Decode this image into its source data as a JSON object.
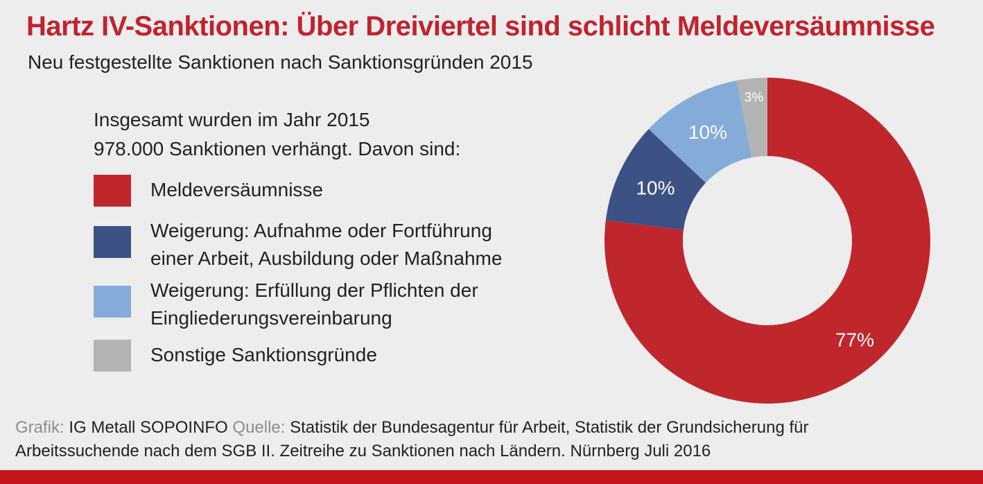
{
  "header": {
    "title": "Hartz IV-Sanktionen: Über Dreiviertel sind schlicht Meldeversäumnisse",
    "subtitle": "Neu festgestellte Sanktionen nach Sanktionsgründen 2015"
  },
  "intro": {
    "line1": "Insgesamt wurden im Jahr 2015",
    "line2": "978.000 Sanktionen verhängt. Davon sind:"
  },
  "legend": [
    {
      "lines": [
        "Meldeversäumnisse"
      ],
      "color": "#c0272d"
    },
    {
      "lines": [
        "Weigerung: Aufnahme oder Fortführung",
        "einer Arbeit, Ausbildung oder Maßnahme"
      ],
      "color": "#3e5185"
    },
    {
      "lines": [
        "Weigerung: Erfüllung der Pflichten der",
        "Eingliederungsvereinbarung"
      ],
      "color": "#85acd9"
    },
    {
      "lines": [
        "Sonstige Sanktionsgründe"
      ],
      "color": "#b3b3b3"
    }
  ],
  "chart_data": {
    "type": "pie",
    "donut": true,
    "categories": [
      "Meldeversäumnisse",
      "Weigerung: Aufnahme oder Fortführung einer Arbeit, Ausbildung oder Maßnahme",
      "Weigerung: Erfüllung der Pflichten der Eingliederungsvereinbarung",
      "Sonstige Sanktionsgründe"
    ],
    "values": [
      77,
      10,
      10,
      3
    ],
    "labels": [
      "77%",
      "10%",
      "10%",
      "3%"
    ],
    "colors": [
      "#c0272d",
      "#3e5185",
      "#85acd9",
      "#b3b3b3"
    ],
    "label_colors": [
      "#ffffff",
      "#ffffff",
      "#ffffff",
      "#ffffff"
    ],
    "direction": "clockwise",
    "start": "top"
  },
  "source": {
    "grafik_label": "Grafik:",
    "grafik_value": "IG Metall SOPOINFO",
    "quelle_label": "Quelle:",
    "quelle_value": "Statistik der Bundesagentur für Arbeit, Statistik der Grundsicherung für",
    "line2": "Arbeitssuchende nach dem SGB II. Zeitreihe zu Sanktionen nach Ländern. Nürnberg Juli 2016"
  },
  "accent_color": "#c4161c"
}
